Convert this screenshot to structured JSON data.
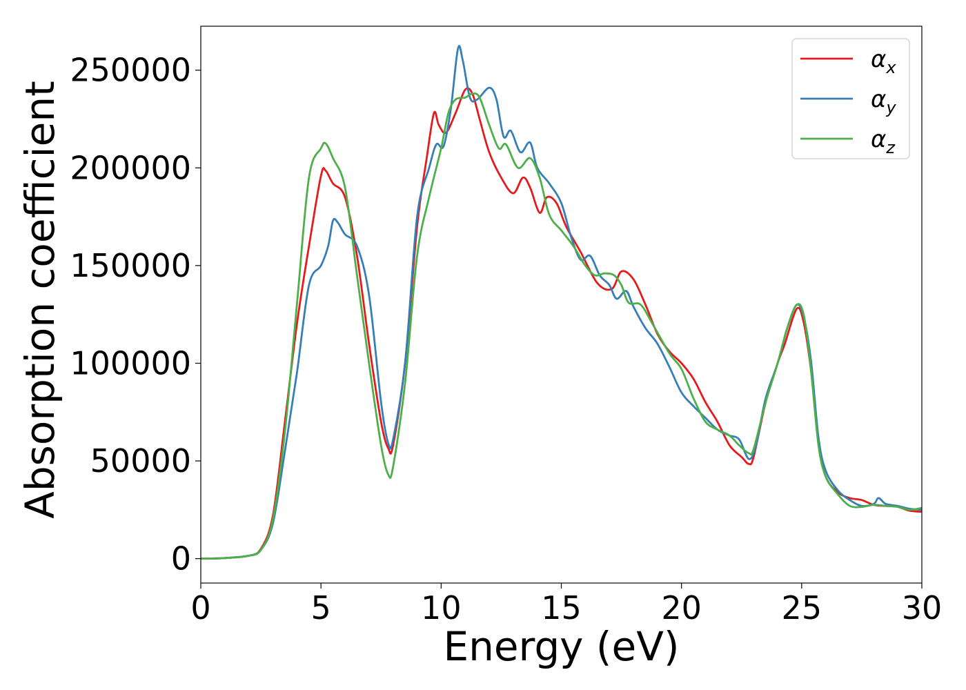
{
  "chart_data": {
    "type": "line",
    "title": "",
    "xlabel": "Energy (eV)",
    "ylabel": "Absorption coefficient",
    "xlim": [
      0,
      30
    ],
    "ylim": [
      -12500,
      272500
    ],
    "xticks": [
      0,
      5,
      10,
      15,
      20,
      25,
      30
    ],
    "yticks": [
      0,
      50000,
      100000,
      150000,
      200000,
      250000
    ],
    "xtick_labels": [
      "0",
      "5",
      "10",
      "15",
      "20",
      "25",
      "30"
    ],
    "ytick_labels": [
      "0",
      "50000",
      "100000",
      "150000",
      "200000",
      "250000"
    ],
    "grid": false,
    "legend_position": "top-right",
    "series": [
      {
        "name": "αx",
        "legend_base": "α",
        "legend_sub": "x",
        "color": "#e41a1c",
        "points": [
          [
            0,
            0
          ],
          [
            1,
            300
          ],
          [
            2,
            1500
          ],
          [
            2.5,
            5000
          ],
          [
            3,
            22000
          ],
          [
            3.5,
            70000
          ],
          [
            4,
            120000
          ],
          [
            4.5,
            160000
          ],
          [
            5,
            196000
          ],
          [
            5.2,
            198500
          ],
          [
            5.5,
            192000
          ],
          [
            6,
            185000
          ],
          [
            6.5,
            155000
          ],
          [
            7,
            110000
          ],
          [
            7.5,
            70000
          ],
          [
            7.8,
            56500
          ],
          [
            8,
            58000
          ],
          [
            8.5,
            100000
          ],
          [
            9,
            170000
          ],
          [
            9.4,
            205000
          ],
          [
            9.7,
            228000
          ],
          [
            9.9,
            222000
          ],
          [
            10.2,
            218000
          ],
          [
            10.6,
            228000
          ],
          [
            11,
            240000
          ],
          [
            11.3,
            238000
          ],
          [
            11.6,
            225000
          ],
          [
            12,
            208000
          ],
          [
            12.5,
            195000
          ],
          [
            13,
            187000
          ],
          [
            13.4,
            195000
          ],
          [
            13.7,
            190000
          ],
          [
            14.1,
            177000
          ],
          [
            14.4,
            185000
          ],
          [
            14.8,
            182000
          ],
          [
            15.2,
            170000
          ],
          [
            15.8,
            157000
          ],
          [
            16.5,
            141000
          ],
          [
            17.1,
            138000
          ],
          [
            17.5,
            147000
          ],
          [
            18,
            143000
          ],
          [
            18.5,
            130000
          ],
          [
            19,
            115000
          ],
          [
            19.5,
            106000
          ],
          [
            20,
            100000
          ],
          [
            20.5,
            92000
          ],
          [
            21,
            80000
          ],
          [
            21.5,
            70000
          ],
          [
            22,
            58000
          ],
          [
            22.5,
            52000
          ],
          [
            22.8,
            48500
          ],
          [
            23,
            52000
          ],
          [
            23.5,
            80000
          ],
          [
            24,
            100000
          ],
          [
            24.3,
            110000
          ],
          [
            24.8,
            128000
          ],
          [
            25.1,
            120000
          ],
          [
            25.4,
            95000
          ],
          [
            25.7,
            60000
          ],
          [
            26,
            42000
          ],
          [
            26.5,
            34000
          ],
          [
            27,
            31000
          ],
          [
            27.5,
            30000
          ],
          [
            28,
            27500
          ],
          [
            28.5,
            27000
          ],
          [
            29,
            26500
          ],
          [
            29.5,
            24500
          ],
          [
            30,
            24000
          ]
        ]
      },
      {
        "name": "αy",
        "legend_base": "α",
        "legend_sub": "y",
        "color": "#377eb8",
        "points": [
          [
            0,
            0
          ],
          [
            1,
            300
          ],
          [
            2,
            1500
          ],
          [
            2.5,
            4500
          ],
          [
            3,
            18000
          ],
          [
            3.5,
            55000
          ],
          [
            4,
            95000
          ],
          [
            4.5,
            140000
          ],
          [
            5,
            150000
          ],
          [
            5.3,
            160000
          ],
          [
            5.5,
            173000
          ],
          [
            5.7,
            172000
          ],
          [
            6,
            166000
          ],
          [
            6.5,
            160000
          ],
          [
            7,
            135000
          ],
          [
            7.5,
            80000
          ],
          [
            7.8,
            59000
          ],
          [
            8,
            61000
          ],
          [
            8.5,
            100000
          ],
          [
            9,
            175000
          ],
          [
            9.5,
            200000
          ],
          [
            9.8,
            212000
          ],
          [
            10.1,
            211000
          ],
          [
            10.4,
            230000
          ],
          [
            10.7,
            261000
          ],
          [
            10.9,
            255000
          ],
          [
            11.2,
            236000
          ],
          [
            11.5,
            235000
          ],
          [
            12,
            241000
          ],
          [
            12.3,
            235000
          ],
          [
            12.6,
            216000
          ],
          [
            12.9,
            219000
          ],
          [
            13.3,
            208000
          ],
          [
            13.7,
            213000
          ],
          [
            14,
            200000
          ],
          [
            14.5,
            192000
          ],
          [
            15,
            182000
          ],
          [
            15.4,
            165000
          ],
          [
            15.8,
            153000
          ],
          [
            16.2,
            155000
          ],
          [
            16.6,
            145000
          ],
          [
            17,
            140000
          ],
          [
            17.3,
            133000
          ],
          [
            17.7,
            137000
          ],
          [
            18,
            129000
          ],
          [
            18.5,
            118000
          ],
          [
            19,
            110000
          ],
          [
            19.5,
            98000
          ],
          [
            20,
            85000
          ],
          [
            20.5,
            78000
          ],
          [
            21,
            72000
          ],
          [
            21.5,
            66000
          ],
          [
            22,
            63000
          ],
          [
            22.4,
            61000
          ],
          [
            22.8,
            51000
          ],
          [
            23.1,
            58000
          ],
          [
            23.5,
            82000
          ],
          [
            24,
            100000
          ],
          [
            24.4,
            118000
          ],
          [
            24.8,
            130000
          ],
          [
            25.1,
            123000
          ],
          [
            25.4,
            100000
          ],
          [
            25.7,
            62000
          ],
          [
            26,
            45000
          ],
          [
            26.5,
            35000
          ],
          [
            27,
            30000
          ],
          [
            27.5,
            27000
          ],
          [
            28,
            28000
          ],
          [
            28.2,
            31000
          ],
          [
            28.5,
            28000
          ],
          [
            29,
            27000
          ],
          [
            29.5,
            25500
          ],
          [
            30,
            25000
          ]
        ]
      },
      {
        "name": "αz",
        "legend_base": "α",
        "legend_sub": "z",
        "color": "#4daf4a",
        "points": [
          [
            0,
            0
          ],
          [
            1,
            300
          ],
          [
            2,
            1500
          ],
          [
            2.5,
            4500
          ],
          [
            3,
            20000
          ],
          [
            3.5,
            65000
          ],
          [
            4,
            130000
          ],
          [
            4.5,
            195000
          ],
          [
            5,
            210000
          ],
          [
            5.2,
            212500
          ],
          [
            5.5,
            205000
          ],
          [
            6,
            190000
          ],
          [
            6.5,
            145000
          ],
          [
            7,
            100000
          ],
          [
            7.5,
            58000
          ],
          [
            7.8,
            43000
          ],
          [
            8,
            47000
          ],
          [
            8.5,
            90000
          ],
          [
            9,
            155000
          ],
          [
            9.5,
            185000
          ],
          [
            10,
            210000
          ],
          [
            10.3,
            228000
          ],
          [
            10.6,
            235000
          ],
          [
            11,
            236000
          ],
          [
            11.3,
            238000
          ],
          [
            11.6,
            236000
          ],
          [
            12,
            222000
          ],
          [
            12.4,
            210000
          ],
          [
            12.7,
            212000
          ],
          [
            13.2,
            200000
          ],
          [
            13.7,
            205000
          ],
          [
            14.1,
            195000
          ],
          [
            14.5,
            176000
          ],
          [
            15,
            168000
          ],
          [
            15.5,
            160000
          ],
          [
            16,
            150000
          ],
          [
            16.4,
            145000
          ],
          [
            16.8,
            146000
          ],
          [
            17.2,
            145000
          ],
          [
            17.5,
            140000
          ],
          [
            17.8,
            131000
          ],
          [
            18.3,
            130000
          ],
          [
            18.8,
            120000
          ],
          [
            19.5,
            105000
          ],
          [
            20,
            97000
          ],
          [
            20.5,
            82000
          ],
          [
            21,
            70000
          ],
          [
            21.5,
            66000
          ],
          [
            22,
            63000
          ],
          [
            22.4,
            58000
          ],
          [
            22.8,
            54000
          ],
          [
            23,
            56000
          ],
          [
            23.5,
            80000
          ],
          [
            24,
            100000
          ],
          [
            24.4,
            118000
          ],
          [
            24.8,
            130000
          ],
          [
            25.1,
            124000
          ],
          [
            25.4,
            95000
          ],
          [
            25.7,
            58000
          ],
          [
            26,
            42000
          ],
          [
            26.5,
            33000
          ],
          [
            27,
            27000
          ],
          [
            27.5,
            26500
          ],
          [
            28,
            27500
          ],
          [
            28.5,
            27000
          ],
          [
            29,
            26500
          ],
          [
            29.5,
            25000
          ],
          [
            30,
            26000
          ]
        ]
      }
    ]
  }
}
